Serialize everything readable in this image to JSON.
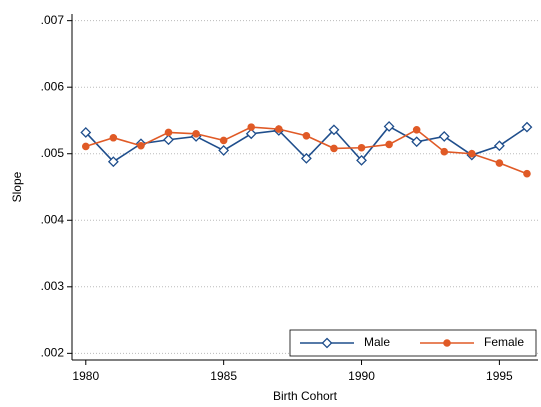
{
  "chart_data": {
    "type": "line",
    "x_label": "Birth Cohort",
    "y_label": "Slope",
    "x": [
      1980,
      1981,
      1982,
      1983,
      1984,
      1985,
      1986,
      1987,
      1988,
      1989,
      1990,
      1991,
      1992,
      1993,
      1994,
      1995,
      1996
    ],
    "series": [
      {
        "name": "Male",
        "color": "#1f4e8c",
        "marker": "diamond",
        "values": [
          0.00532,
          0.00488,
          0.00515,
          0.00521,
          0.00526,
          0.00505,
          0.0053,
          0.00535,
          0.00493,
          0.00536,
          0.0049,
          0.00541,
          0.00518,
          0.00526,
          0.00498,
          0.00512,
          0.0054
        ]
      },
      {
        "name": "Female",
        "color": "#e05a26",
        "marker": "circle",
        "values": [
          0.00511,
          0.00524,
          0.00512,
          0.00532,
          0.0053,
          0.0052,
          0.0054,
          0.00537,
          0.00527,
          0.00508,
          0.00509,
          0.00514,
          0.00536,
          0.00503,
          0.005,
          0.00486,
          0.0047
        ]
      }
    ],
    "xlim": [
      1979.5,
      1996.4
    ],
    "xticks": [
      1980,
      1985,
      1990,
      1995
    ],
    "ylim": [
      0.0019,
      0.0071
    ],
    "yticks": [
      {
        "value": 0.002,
        "label": ".002"
      },
      {
        "value": 0.003,
        "label": ".003"
      },
      {
        "value": 0.004,
        "label": ".004"
      },
      {
        "value": 0.005,
        "label": ".005"
      },
      {
        "value": 0.006,
        "label": ".006"
      },
      {
        "value": 0.007,
        "label": ".007"
      }
    ],
    "grid": true,
    "legend_position": "bottom-right"
  }
}
